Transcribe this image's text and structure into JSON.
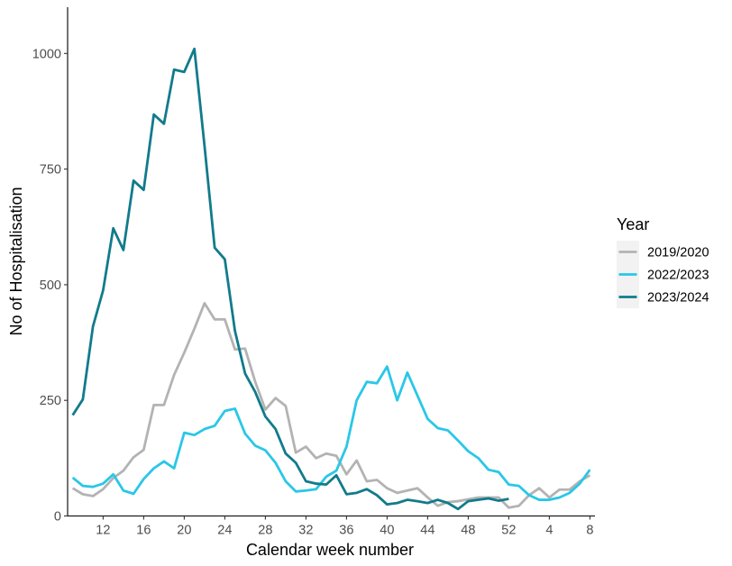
{
  "chart_data": {
    "type": "line",
    "title": "",
    "xlabel": "Calendar week number",
    "ylabel": "No of Hospitalisation",
    "x_tick_labels": [
      "12",
      "16",
      "20",
      "24",
      "28",
      "32",
      "36",
      "40",
      "44",
      "48",
      "52",
      "4",
      "8"
    ],
    "x_tick_index": [
      3,
      7,
      11,
      15,
      19,
      23,
      27,
      31,
      35,
      39,
      43,
      47,
      51
    ],
    "x_index_range": [
      -0.5,
      51.5
    ],
    "x_note": "x index 0 = week 9; weeks run 9..52 then 1..8",
    "ylim": [
      0,
      1100
    ],
    "y_ticks": [
      0,
      250,
      500,
      750,
      1000
    ],
    "y_tick_labels": [
      "0",
      "250",
      "500",
      "750",
      "1000"
    ],
    "grid": false,
    "legend": {
      "title": "Year",
      "position": "right"
    },
    "series": [
      {
        "name": "2019/2020",
        "color": "#b3b3b3",
        "x": [
          0,
          1,
          2,
          3,
          4,
          5,
          6,
          7,
          8,
          9,
          10,
          11,
          12,
          13,
          14,
          15,
          16,
          17,
          18,
          19,
          20,
          21,
          22,
          23,
          24,
          25,
          26,
          27,
          28,
          29,
          30,
          31,
          32,
          33,
          34,
          35,
          36,
          37,
          38,
          39,
          40,
          41,
          42,
          43,
          44,
          45,
          46,
          47,
          48,
          49,
          50,
          51
        ],
        "values": [
          60,
          47,
          43,
          58,
          82,
          98,
          127,
          143,
          240,
          240,
          305,
          353,
          405,
          460,
          425,
          425,
          360,
          362,
          290,
          230,
          255,
          238,
          137,
          150,
          125,
          135,
          130,
          90,
          120,
          75,
          78,
          60,
          50,
          55,
          60,
          40,
          22,
          30,
          32,
          36,
          40,
          40,
          40,
          18,
          22,
          45,
          60,
          40,
          57,
          57,
          75,
          88
        ]
      },
      {
        "name": "2022/2023",
        "color": "#29c7e8",
        "x": [
          0,
          1,
          2,
          3,
          4,
          5,
          6,
          7,
          8,
          9,
          10,
          11,
          12,
          13,
          14,
          15,
          16,
          17,
          18,
          19,
          20,
          21,
          22,
          23,
          24,
          25,
          26,
          27,
          28,
          29,
          30,
          31,
          32,
          33,
          34,
          35,
          36,
          37,
          38,
          39,
          40,
          41,
          42,
          43,
          44,
          45,
          46,
          47,
          48,
          49,
          50,
          51
        ],
        "values": [
          83,
          65,
          63,
          70,
          90,
          55,
          48,
          80,
          103,
          118,
          103,
          180,
          175,
          188,
          195,
          227,
          232,
          178,
          152,
          142,
          115,
          75,
          53,
          55,
          58,
          85,
          98,
          150,
          250,
          290,
          287,
          323,
          250,
          310,
          260,
          210,
          190,
          185,
          163,
          140,
          125,
          100,
          95,
          68,
          65,
          45,
          35,
          35,
          40,
          50,
          70,
          100
        ]
      },
      {
        "name": "2023/2024",
        "color": "#117b8b",
        "x": [
          0,
          1,
          2,
          3,
          4,
          5,
          6,
          7,
          8,
          9,
          10,
          11,
          12,
          13,
          14,
          15,
          16,
          17,
          18,
          19,
          20,
          21,
          22,
          23,
          24,
          25,
          26,
          27,
          28,
          29,
          30,
          31,
          32,
          33,
          34,
          35,
          36,
          37,
          38,
          39,
          40,
          41,
          42,
          43
        ],
        "values": [
          218,
          252,
          410,
          488,
          622,
          575,
          725,
          705,
          868,
          848,
          965,
          960,
          1010,
          800,
          580,
          555,
          400,
          308,
          268,
          215,
          188,
          135,
          115,
          75,
          70,
          68,
          88,
          47,
          50,
          58,
          45,
          25,
          28,
          35,
          32,
          28,
          35,
          28,
          15,
          32,
          35,
          38,
          33,
          37
        ]
      }
    ]
  }
}
